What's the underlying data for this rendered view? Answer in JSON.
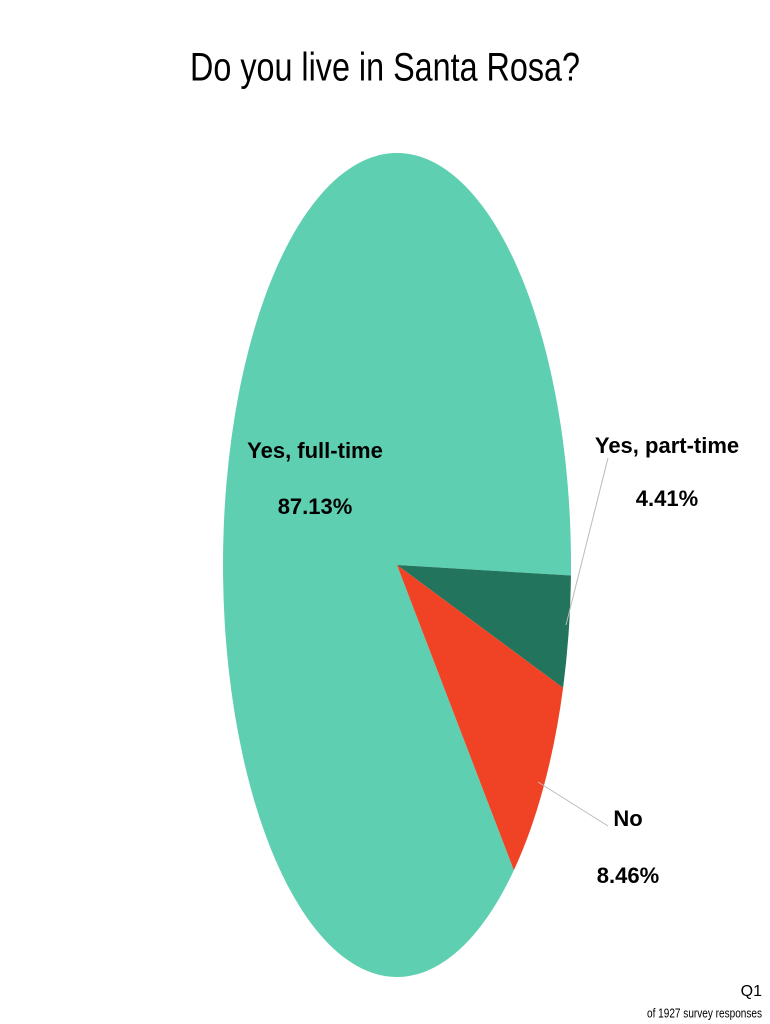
{
  "chart_data": {
    "type": "pie",
    "title": "Do you live in Santa Rosa?",
    "categories": [
      "Yes, full-time",
      "Yes, part-time",
      "No"
    ],
    "values": [
      87.13,
      4.41,
      8.46
    ],
    "value_labels": [
      "87.13%",
      "4.41%",
      "8.46%"
    ],
    "colors": [
      "#5ecfb1",
      "#22745c",
      "#f04325"
    ],
    "footer": {
      "question": "Q1",
      "note": "of 1927 survey responses"
    }
  }
}
